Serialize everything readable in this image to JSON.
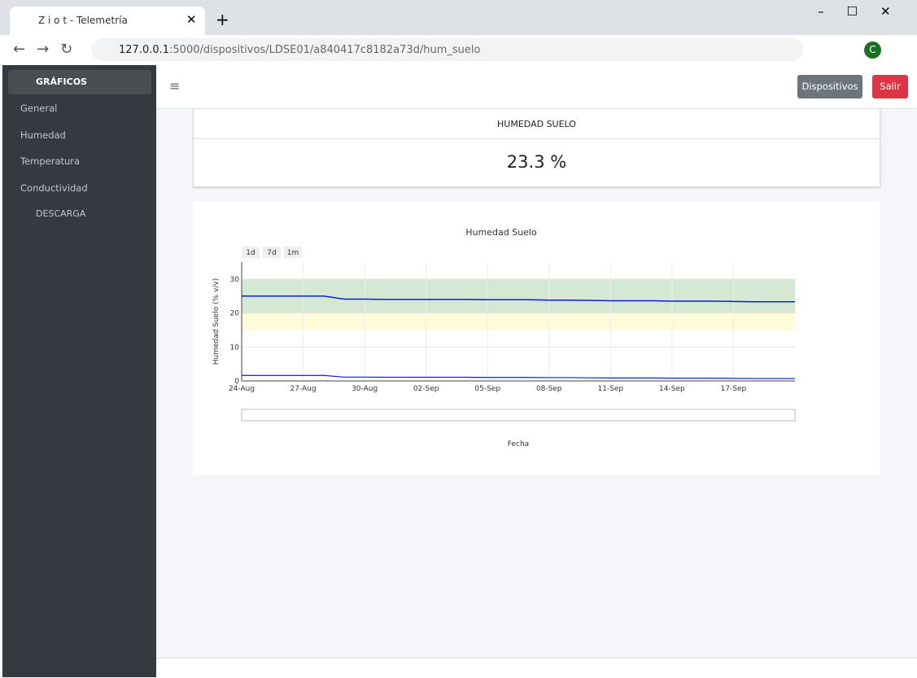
{
  "browser": {
    "tab_title": "Z i o t - Telemetría",
    "url_host": "127.0.0.1",
    "url_path": ":5000/dispositivos/LDSE01/a840417c8182a73d/hum_suelo",
    "profile": "C"
  },
  "sidebar": {
    "section": "GRÁFICOS",
    "items": [
      "General",
      "Humedad",
      "Temperatura",
      "Conductividad"
    ],
    "download": "DESCARGA"
  },
  "navbar": {
    "buttons": [
      "Dispositivos",
      "Salir"
    ]
  },
  "card": {
    "header": "HUMEDAD SUELO",
    "value": "23.3 %"
  },
  "chart_data": {
    "type": "line",
    "title": "Humedad Suelo",
    "xlabel": "Fecha",
    "ylabel": "Humedad Suelo (% v/v)",
    "range_buttons": [
      "1d",
      "7d",
      "1m"
    ],
    "x": [
      "24-Aug",
      "25-Aug",
      "26-Aug",
      "27-Aug",
      "28-Aug",
      "29-Aug",
      "30-Aug",
      "31-Aug",
      "01-Sep",
      "02-Sep",
      "03-Sep",
      "04-Sep",
      "05-Sep",
      "06-Sep",
      "07-Sep",
      "08-Sep",
      "09-Sep",
      "10-Sep",
      "11-Sep",
      "12-Sep",
      "13-Sep",
      "14-Sep",
      "15-Sep",
      "16-Sep",
      "17-Sep",
      "18-Sep",
      "19-Sep",
      "20-Sep"
    ],
    "series": [
      {
        "name": "Humedad Suelo",
        "color": "#0a1fd6",
        "values": [
          25.0,
          25.0,
          25.0,
          25.0,
          25.0,
          24.1,
          24.1,
          24.0,
          24.0,
          24.0,
          24.0,
          24.0,
          23.9,
          23.9,
          23.9,
          23.8,
          23.8,
          23.7,
          23.6,
          23.6,
          23.6,
          23.5,
          23.5,
          23.5,
          23.4,
          23.3,
          23.3,
          23.3
        ]
      }
    ],
    "bands": [
      {
        "from": 20,
        "to": 30,
        "color": "#d5e8d4"
      },
      {
        "from": 15,
        "to": 20,
        "color": "#fefbd8"
      }
    ],
    "xlim": [
      "24-Aug",
      "20-Sep"
    ],
    "xticks": [
      "24-Aug",
      "27-Aug",
      "30-Aug",
      "02-Sep",
      "05-Sep",
      "08-Sep",
      "11-Sep",
      "14-Sep",
      "17-Sep"
    ],
    "ylim": [
      0,
      35
    ],
    "yticks": [
      0,
      10,
      20,
      30
    ],
    "grid": true
  }
}
